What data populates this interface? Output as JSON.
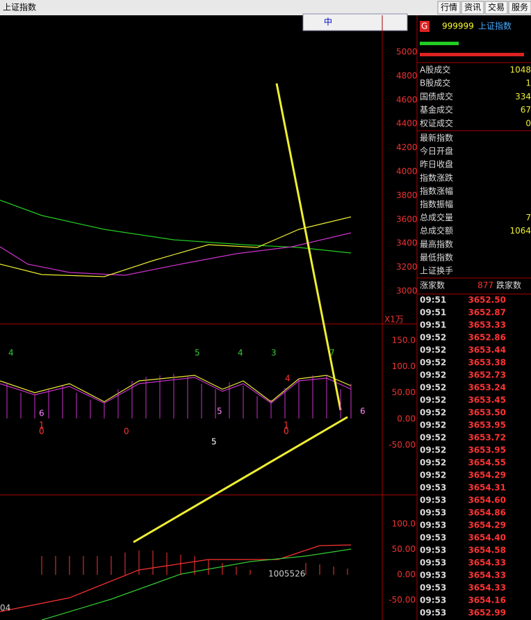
{
  "header": {
    "title": "上证指数",
    "buttons": [
      "行情",
      "资讯",
      "交易",
      "服务"
    ]
  },
  "toolbar": {
    "text": "中"
  },
  "main_panel": {
    "axis": [
      "5000",
      "4800",
      "4600",
      "4400",
      "4200",
      "4000",
      "3800",
      "3600",
      "3400",
      "3200",
      "3000"
    ],
    "unit": "X1万"
  },
  "kdj_panel": {
    "axis": [
      "150.0",
      "100.0",
      "50.00",
      "0.00",
      "-50.00"
    ],
    "markers": [
      "4",
      "5",
      "4",
      "3",
      "7",
      "6",
      "5",
      "6",
      "1",
      "0",
      "0",
      "4",
      "1",
      "0",
      "5"
    ]
  },
  "macd_panel": {
    "axis": [
      "100.0",
      "50.00",
      "0.00",
      "-50.00"
    ],
    "left_label": "04",
    "mid_label": "1005526"
  },
  "quote": {
    "badge": "G",
    "code": "999999",
    "name": "上证指数",
    "fields": [
      [
        "A股成交",
        "1048"
      ],
      [
        "B股成交",
        "1"
      ],
      [
        "国债成交",
        "334"
      ],
      [
        "基金成交",
        "67"
      ],
      [
        "权证成交",
        "0"
      ]
    ],
    "stats": [
      [
        "最新指数",
        ""
      ],
      [
        "今日开盘",
        ""
      ],
      [
        "昨日收盘",
        ""
      ],
      [
        "指数涨跌",
        ""
      ],
      [
        "指数涨幅",
        ""
      ],
      [
        "指数振幅",
        ""
      ],
      [
        "总成交量",
        "7"
      ],
      [
        "总成交额",
        "1064"
      ],
      [
        "最高指数",
        ""
      ],
      [
        "最低指数",
        ""
      ],
      [
        "上证换手",
        ""
      ]
    ],
    "breadth": {
      "up_label": "涨家数",
      "up": "877",
      "down_label": "跌家数"
    }
  },
  "ticks": [
    [
      "09:51",
      "3652.50"
    ],
    [
      "09:51",
      "3652.87"
    ],
    [
      "09:51",
      "3653.33"
    ],
    [
      "09:52",
      "3652.86"
    ],
    [
      "09:52",
      "3653.44"
    ],
    [
      "09:52",
      "3653.38"
    ],
    [
      "09:52",
      "3652.73"
    ],
    [
      "09:52",
      "3653.24"
    ],
    [
      "09:52",
      "3653.45"
    ],
    [
      "09:52",
      "3653.50"
    ],
    [
      "09:52",
      "3653.95"
    ],
    [
      "09:52",
      "3653.72"
    ],
    [
      "09:52",
      "3653.95"
    ],
    [
      "09:52",
      "3654.55"
    ],
    [
      "09:52",
      "3654.29"
    ],
    [
      "09:53",
      "3654.31"
    ],
    [
      "09:53",
      "3654.60"
    ],
    [
      "09:53",
      "3654.86"
    ],
    [
      "09:53",
      "3654.29"
    ],
    [
      "09:53",
      "3654.40"
    ],
    [
      "09:53",
      "3654.58"
    ],
    [
      "09:53",
      "3654.33"
    ],
    [
      "09:53",
      "3654.33"
    ],
    [
      "09:53",
      "3654.33"
    ],
    [
      "09:53",
      "3654.16"
    ],
    [
      "09:53",
      "3652.99"
    ]
  ]
}
